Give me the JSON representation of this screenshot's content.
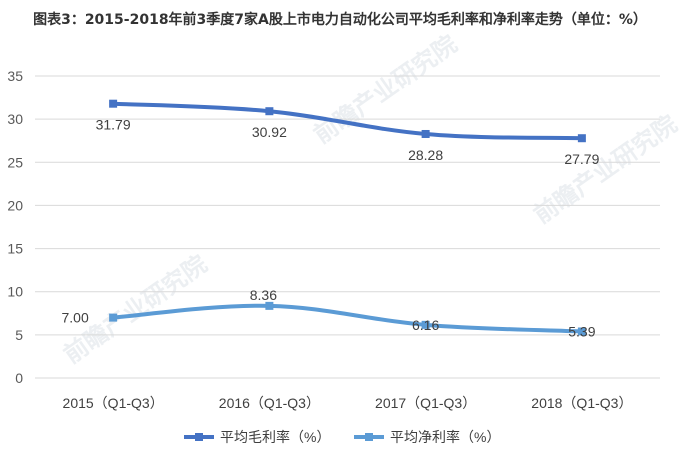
{
  "title": "图表3：2015-2018年前3季度7家A股上市电力自动化公司平均毛利率和净利率走势（单位：%）",
  "watermark_text": "前瞻产业研究院",
  "chart_data": {
    "type": "line",
    "title": "图表3：2015-2018年前3季度7家A股上市电力自动化公司平均毛利率和净利率走势（单位：%）",
    "categories": [
      "2015（Q1-Q3）",
      "2016（Q1-Q3）",
      "2017（Q1-Q3）",
      "2018（Q1-Q3）"
    ],
    "series": [
      {
        "name": "平均毛利率（%）",
        "values": [
          31.79,
          30.92,
          28.28,
          27.79
        ],
        "labels": [
          "31.79",
          "30.92",
          "28.28",
          "27.79"
        ],
        "color": "#4472c4"
      },
      {
        "name": "平均净利率（%）",
        "values": [
          7.0,
          8.36,
          6.16,
          5.39
        ],
        "labels": [
          "7.00",
          "8.36",
          "6.16",
          "5.39"
        ],
        "color": "#5b9bd5"
      }
    ],
    "yticks": [
      "0",
      "5",
      "10",
      "15",
      "20",
      "25",
      "30",
      "35"
    ],
    "ylim": [
      0,
      35
    ],
    "grid": true,
    "legend": "bottom"
  }
}
